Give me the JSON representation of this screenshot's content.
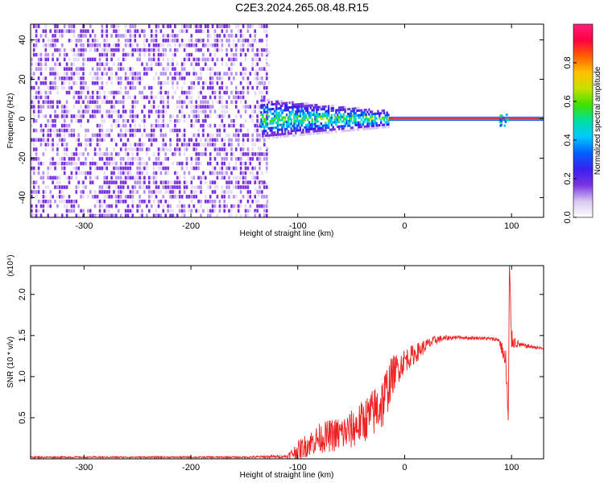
{
  "page_title": "C2E3.2024.265.08.48.R15",
  "chart_data": [
    {
      "type": "heatmap",
      "id": "spectrogram",
      "title": "C2E3.2024.265.08.48.R15",
      "xlabel": "Height of straight line (km)",
      "ylabel": "Frequency (Hz)",
      "xlim": [
        -350,
        130
      ],
      "ylim": [
        -50,
        48
      ],
      "x_ticks": [
        -300,
        -200,
        -100,
        0,
        100
      ],
      "x_tick_labels": [
        "-300",
        "-200",
        "-100",
        "0",
        "100"
      ],
      "y_ticks": [
        -40,
        -20,
        0,
        20,
        40
      ],
      "y_tick_labels": [
        "-40",
        "-20",
        "0",
        "20",
        "40"
      ],
      "colorbar": {
        "label": "Normalized spectral amplitude",
        "range": [
          0,
          1
        ],
        "ticks": [
          0.0,
          0.2,
          0.4,
          0.6,
          0.8
        ],
        "tick_labels": [
          "0.0",
          "0.2",
          "0.4",
          "0.6",
          "0.8"
        ],
        "colors": [
          "#ffffff",
          "#d8c8f0",
          "#7a33e0",
          "#3a1ff0",
          "#0060ff",
          "#00c8ff",
          "#00e0a0",
          "#40e000",
          "#c8e000",
          "#ffc000",
          "#ff6000",
          "#ff0040",
          "#ff2080"
        ]
      },
      "features": {
        "noise_region_km": [
          -350,
          -130
        ],
        "noise_amplitude_range": [
          0.0,
          0.25
        ],
        "transition_region_km": [
          -135,
          -15
        ],
        "transition_bandwidth_hz": [
          10,
          4
        ],
        "carrier_start_km": -15,
        "carrier_frequency_hz": 0,
        "carrier_amplitude": 0.95,
        "spur_x_km": 92
      }
    },
    {
      "type": "line",
      "id": "snr",
      "xlabel": "Height of straight line (km)",
      "ylabel": "SNR (10 * v/v)",
      "y_scale_label": "(x10⁴)",
      "xlim": [
        -350,
        130
      ],
      "ylim": [
        0,
        2.35
      ],
      "x_ticks": [
        -300,
        -200,
        -100,
        0,
        100
      ],
      "x_tick_labels": [
        "-300",
        "-200",
        "-100",
        "0",
        "100"
      ],
      "y_ticks": [
        0.5,
        1.0,
        1.5,
        2.0
      ],
      "y_tick_labels": [
        "0.5",
        "1.0",
        "1.5",
        "2.0"
      ],
      "series": [
        {
          "color": "#ee2222",
          "x": [
            -350,
            -300,
            -250,
            -200,
            -150,
            -110,
            -100,
            -90,
            -80,
            -70,
            -60,
            -50,
            -40,
            -30,
            -20,
            -15,
            -10,
            -5,
            0,
            10,
            20,
            30,
            40,
            50,
            60,
            70,
            80,
            88,
            92,
            95,
            97,
            98,
            100,
            105,
            110,
            120,
            130
          ],
          "y": [
            0.02,
            0.02,
            0.02,
            0.02,
            0.02,
            0.03,
            0.1,
            0.18,
            0.25,
            0.28,
            0.3,
            0.35,
            0.45,
            0.55,
            0.7,
            0.9,
            1.05,
            1.12,
            1.2,
            1.28,
            1.38,
            1.45,
            1.47,
            1.48,
            1.47,
            1.47,
            1.46,
            1.45,
            1.3,
            1.1,
            0.4,
            2.3,
            1.45,
            1.4,
            1.38,
            1.36,
            1.34
          ],
          "noise_amplitude": [
            0.01,
            0.01,
            0.01,
            0.01,
            0.01,
            0.02,
            0.12,
            0.15,
            0.18,
            0.2,
            0.22,
            0.24,
            0.26,
            0.3,
            0.35,
            0.3,
            0.22,
            0.18,
            0.15,
            0.12,
            0.08,
            0.05,
            0.03,
            0.02,
            0.02,
            0.02,
            0.02,
            0.03,
            0.1,
            0.25,
            0.3,
            0.2,
            0.12,
            0.05,
            0.03,
            0.02,
            0.02
          ]
        }
      ]
    }
  ]
}
